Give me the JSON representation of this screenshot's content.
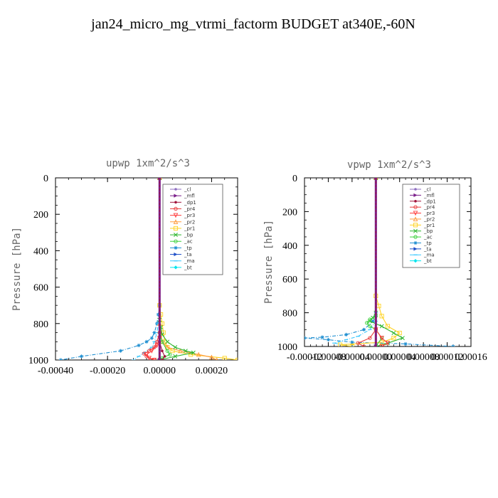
{
  "title": "jan24_micro_mg_vtrmi_factorm  BUDGET at340E,-60N",
  "legend_order": [
    "_cl",
    "_mfl",
    "_dp1",
    "_pr4",
    "_pr3",
    "_pr2",
    "_pr1",
    "_bp",
    "_ac",
    "_tp",
    "_ta",
    "_ma",
    "_bt"
  ],
  "series_styles": {
    "_cl": {
      "color": "#8f6fc0",
      "marker": "dot"
    },
    "_mfl": {
      "color": "#7b1f8a",
      "marker": "tri-r"
    },
    "_dp1": {
      "color": "#a0143c",
      "marker": "dot"
    },
    "_pr4": {
      "color": "#e83a3a",
      "marker": "circle"
    },
    "_pr3": {
      "color": "#ff3b3b",
      "marker": "tri-d"
    },
    "_pr2": {
      "color": "#ff9a3c",
      "marker": "tri-u"
    },
    "_pr1": {
      "color": "#ffd21f",
      "marker": "square"
    },
    "_bp": {
      "color": "#2db52d",
      "marker": "x"
    },
    "_ac": {
      "color": "#3ad13a",
      "marker": "circle"
    },
    "_tp": {
      "color": "#1f8fd1",
      "marker": "star"
    },
    "_ta": {
      "color": "#2050c8",
      "marker": "tri-r"
    },
    "_ma": {
      "color": "#39c8ff",
      "marker": "dash"
    },
    "_bt": {
      "color": "#00e5ee",
      "marker": "diamond"
    }
  },
  "chart_data": [
    {
      "type": "line",
      "title": "upwp   1xm^2/s^3",
      "xlabel": "",
      "ylabel": "Pressure [hPa]",
      "xlim": [
        -0.0004,
        0.0003
      ],
      "ylim": [
        1000,
        0
      ],
      "xticks": [
        -0.0004,
        -0.0002,
        0.0,
        0.0002
      ],
      "xtick_labels": [
        "-0.00040",
        "-0.00020",
        "0.00000",
        "0.00020"
      ],
      "yticks": [
        0,
        200,
        400,
        600,
        800,
        1000
      ],
      "ytick_labels": [
        "0",
        "200",
        "400",
        "600",
        "800",
        "1000"
      ],
      "legend_position": "top-right",
      "series": [
        {
          "name": "_tp",
          "points": [
            [
              0,
              0
            ],
            [
              0,
              700
            ],
            [
              -5e-06,
              750
            ],
            [
              -1e-05,
              800
            ],
            [
              -2e-05,
              850
            ],
            [
              -3e-05,
              880
            ],
            [
              -5e-05,
              900
            ],
            [
              -8e-05,
              920
            ],
            [
              -0.00015,
              950
            ],
            [
              -0.0003,
              980
            ],
            [
              -0.00038,
              1000
            ]
          ]
        },
        {
          "name": "_ma",
          "points": [
            [
              0,
              0
            ],
            [
              0,
              750
            ],
            [
              -5e-06,
              800
            ],
            [
              -1e-05,
              850
            ],
            [
              -2e-05,
              900
            ],
            [
              -3e-05,
              930
            ],
            [
              -6e-05,
              960
            ],
            [
              -8e-05,
              980
            ],
            [
              -0.0001,
              1000
            ]
          ]
        },
        {
          "name": "_pr1",
          "points": [
            [
              0,
              0
            ],
            [
              0,
              700
            ],
            [
              5e-06,
              750
            ],
            [
              1e-05,
              800
            ],
            [
              1.5e-05,
              850
            ],
            [
              2e-05,
              900
            ],
            [
              3e-05,
              930
            ],
            [
              5e-05,
              950
            ],
            [
              0.00012,
              970
            ],
            [
              0.00025,
              990
            ],
            [
              0.0003,
              1000
            ]
          ]
        },
        {
          "name": "_pr2",
          "points": [
            [
              0,
              0
            ],
            [
              0,
              800
            ],
            [
              5e-06,
              850
            ],
            [
              1e-05,
              900
            ],
            [
              3e-05,
              930
            ],
            [
              8e-05,
              950
            ],
            [
              0.00015,
              970
            ],
            [
              0.0002,
              985
            ],
            [
              0.00022,
              1000
            ]
          ]
        },
        {
          "name": "_bp",
          "points": [
            [
              0,
              0
            ],
            [
              0,
              780
            ],
            [
              5e-06,
              820
            ],
            [
              1e-05,
              860
            ],
            [
              3e-05,
              900
            ],
            [
              6e-05,
              930
            ],
            [
              0.0001,
              950
            ],
            [
              0.00013,
              960
            ],
            [
              6e-05,
              980
            ],
            [
              0.0,
              1000
            ]
          ]
        },
        {
          "name": "_ac",
          "points": [
            [
              0,
              0
            ],
            [
              0,
              850
            ],
            [
              1e-05,
              900
            ],
            [
              3e-05,
              950
            ],
            [
              4e-05,
              970
            ],
            [
              1e-05,
              990
            ],
            [
              0,
              1000
            ]
          ]
        },
        {
          "name": "_pr4",
          "points": [
            [
              0,
              0
            ],
            [
              0,
              850
            ],
            [
              -1e-05,
              900
            ],
            [
              -2e-05,
              930
            ],
            [
              -4e-05,
              950
            ],
            [
              -6e-05,
              965
            ],
            [
              -5e-05,
              980
            ],
            [
              -2e-05,
              1000
            ]
          ]
        },
        {
          "name": "_pr3",
          "points": [
            [
              0,
              0
            ],
            [
              0,
              880
            ],
            [
              -1e-05,
              920
            ],
            [
              -3e-05,
              950
            ],
            [
              -5e-05,
              970
            ],
            [
              -4e-05,
              990
            ],
            [
              -2e-05,
              1000
            ]
          ]
        },
        {
          "name": "_dp1",
          "points": [
            [
              0,
              0
            ],
            [
              0,
              900
            ],
            [
              1e-05,
              950
            ],
            [
              2e-05,
              980
            ],
            [
              1e-05,
              1000
            ]
          ]
        },
        {
          "name": "_cl",
          "points": [
            [
              0,
              0
            ],
            [
              0,
              1000
            ]
          ]
        },
        {
          "name": "_mfl",
          "points": [
            [
              0,
              0
            ],
            [
              0,
              1000
            ]
          ]
        }
      ]
    },
    {
      "type": "line",
      "title": "vpwp   1xm^2/s^3",
      "xlabel": "",
      "ylabel": "Pressure [hPa]",
      "xlim": [
        -0.00012,
        0.00016
      ],
      "ylim": [
        1000,
        0
      ],
      "xticks": [
        -0.00012,
        -8e-05,
        -4e-05,
        0.0,
        4e-05,
        8e-05,
        0.00012,
        0.00016
      ],
      "xtick_labels": [
        "-0.00012",
        "-0.00008",
        "-0.00004",
        "0.00000",
        "0.00004",
        "0.00008",
        "0.00012",
        "0.00016"
      ],
      "yticks": [
        0,
        200,
        400,
        600,
        800,
        1000
      ],
      "ytick_labels": [
        "0",
        "200",
        "400",
        "600",
        "800",
        "1000"
      ],
      "legend_position": "top-right",
      "series": [
        {
          "name": "_tp",
          "points": [
            [
              0,
              0
            ],
            [
              0,
              800
            ],
            [
              -5e-06,
              850
            ],
            [
              -2e-05,
              900
            ],
            [
              -5e-05,
              930
            ],
            [
              -9e-05,
              945
            ],
            [
              -0.00012,
              950
            ],
            [
              -8e-05,
              960
            ],
            [
              -4e-05,
              975
            ],
            [
              5e-05,
              985
            ],
            [
              0.00013,
              1000
            ]
          ]
        },
        {
          "name": "_ma",
          "points": [
            [
              0,
              0
            ],
            [
              0,
              850
            ],
            [
              -1e-05,
              900
            ],
            [
              -3e-05,
              940
            ],
            [
              -5e-05,
              960
            ],
            [
              -7e-05,
              980
            ],
            [
              -4e-05,
              1000
            ]
          ]
        },
        {
          "name": "_pr1",
          "points": [
            [
              0,
              0
            ],
            [
              0,
              700
            ],
            [
              5e-06,
              760
            ],
            [
              1e-05,
              820
            ],
            [
              2e-05,
              880
            ],
            [
              4e-05,
              920
            ],
            [
              3e-05,
              950
            ],
            [
              1e-05,
              975
            ],
            [
              -6e-05,
              990
            ],
            [
              -4e-05,
              1000
            ]
          ]
        },
        {
          "name": "_bp",
          "points": [
            [
              0,
              0
            ],
            [
              0,
              800
            ],
            [
              -5e-06,
              830
            ],
            [
              -1e-05,
              850
            ],
            [
              1e-05,
              880
            ],
            [
              3e-05,
              920
            ],
            [
              4.5e-05,
              950
            ],
            [
              2e-05,
              980
            ],
            [
              0,
              1000
            ]
          ]
        },
        {
          "name": "_ac",
          "points": [
            [
              0,
              0
            ],
            [
              0,
              820
            ],
            [
              -1e-05,
              840
            ],
            [
              -1.5e-05,
              860
            ],
            [
              -1e-05,
              880
            ],
            [
              0,
              900
            ],
            [
              1e-05,
              950
            ],
            [
              0,
              1000
            ]
          ]
        },
        {
          "name": "_pr4",
          "points": [
            [
              0,
              0
            ],
            [
              0,
              900
            ],
            [
              -1e-05,
              950
            ],
            [
              -3e-05,
              980
            ],
            [
              -2e-05,
              1000
            ]
          ]
        },
        {
          "name": "_pr3",
          "points": [
            [
              0,
              0
            ],
            [
              0,
              900
            ],
            [
              1e-05,
              950
            ],
            [
              2e-05,
              980
            ],
            [
              1e-05,
              1000
            ]
          ]
        },
        {
          "name": "_dp1",
          "points": [
            [
              0,
              0
            ],
            [
              0,
              1000
            ]
          ]
        },
        {
          "name": "_cl",
          "points": [
            [
              0,
              0
            ],
            [
              0,
              1000
            ]
          ]
        },
        {
          "name": "_mfl",
          "points": [
            [
              0,
              0
            ],
            [
              0,
              1000
            ]
          ]
        }
      ]
    }
  ]
}
